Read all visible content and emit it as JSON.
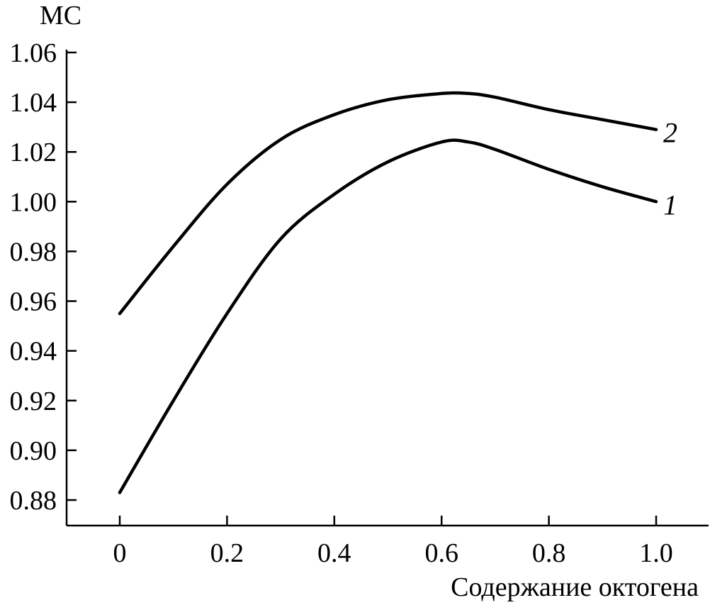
{
  "chart_data": {
    "type": "line",
    "xlabel": "Содержание октогена",
    "ylabel": "МС",
    "xlim": [
      -0.1,
      1.1
    ],
    "ylim": [
      0.87,
      1.06
    ],
    "x_ticks": [
      0,
      0.2,
      0.4,
      0.6,
      0.8,
      1.0
    ],
    "x_tick_labels": [
      "0",
      "0.2",
      "0.4",
      "0.6",
      "0.8",
      "1.0"
    ],
    "y_ticks": [
      0.88,
      0.9,
      0.92,
      0.94,
      0.96,
      0.98,
      1.0,
      1.02,
      1.04,
      1.06
    ],
    "y_tick_labels": [
      "0.88",
      "0.90",
      "0.92",
      "0.94",
      "0.96",
      "0.98",
      "1.00",
      "1.02",
      "1.04",
      "1.06"
    ],
    "grid": false,
    "series": [
      {
        "label": "1",
        "color": "#000000",
        "x": [
          0,
          0.1,
          0.2,
          0.3,
          0.4,
          0.5,
          0.6,
          0.65,
          0.7,
          0.8,
          0.9,
          1.0
        ],
        "y": [
          0.883,
          0.92,
          0.955,
          0.985,
          1.003,
          1.016,
          1.024,
          1.024,
          1.021,
          1.013,
          1.006,
          1.0
        ]
      },
      {
        "label": "2",
        "color": "#000000",
        "x": [
          0,
          0.1,
          0.2,
          0.3,
          0.4,
          0.5,
          0.6,
          0.65,
          0.7,
          0.8,
          0.9,
          1.0
        ],
        "y": [
          0.955,
          0.982,
          1.007,
          1.025,
          1.035,
          1.041,
          1.0435,
          1.0435,
          1.042,
          1.037,
          1.033,
          1.029
        ]
      }
    ]
  }
}
